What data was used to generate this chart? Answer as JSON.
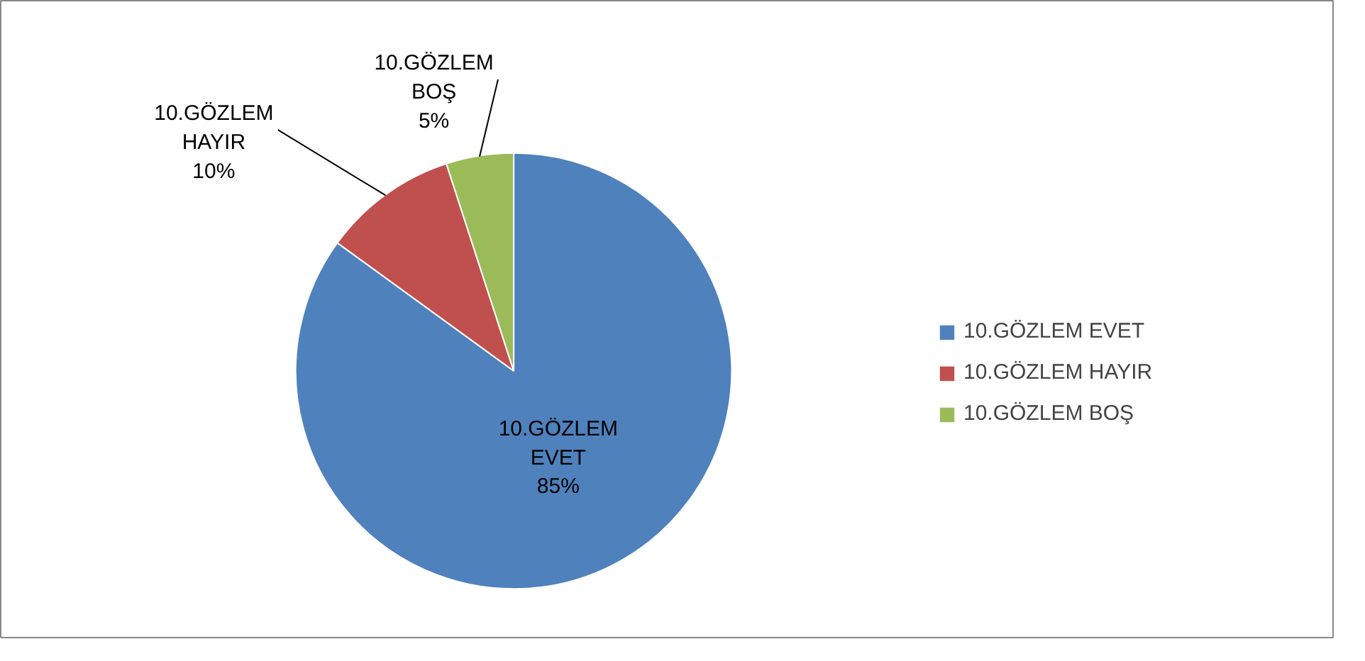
{
  "chart_data": {
    "type": "pie",
    "categories": [
      "10.GÖZLEM EVET",
      "10.GÖZLEM HAYIR",
      "10.GÖZLEM BOŞ"
    ],
    "values": [
      85,
      10,
      5
    ],
    "value_labels": [
      "85%",
      "10%",
      "5%"
    ],
    "colors": [
      "#4f81bd",
      "#c0504d",
      "#9bbb59"
    ],
    "legend": "right"
  }
}
